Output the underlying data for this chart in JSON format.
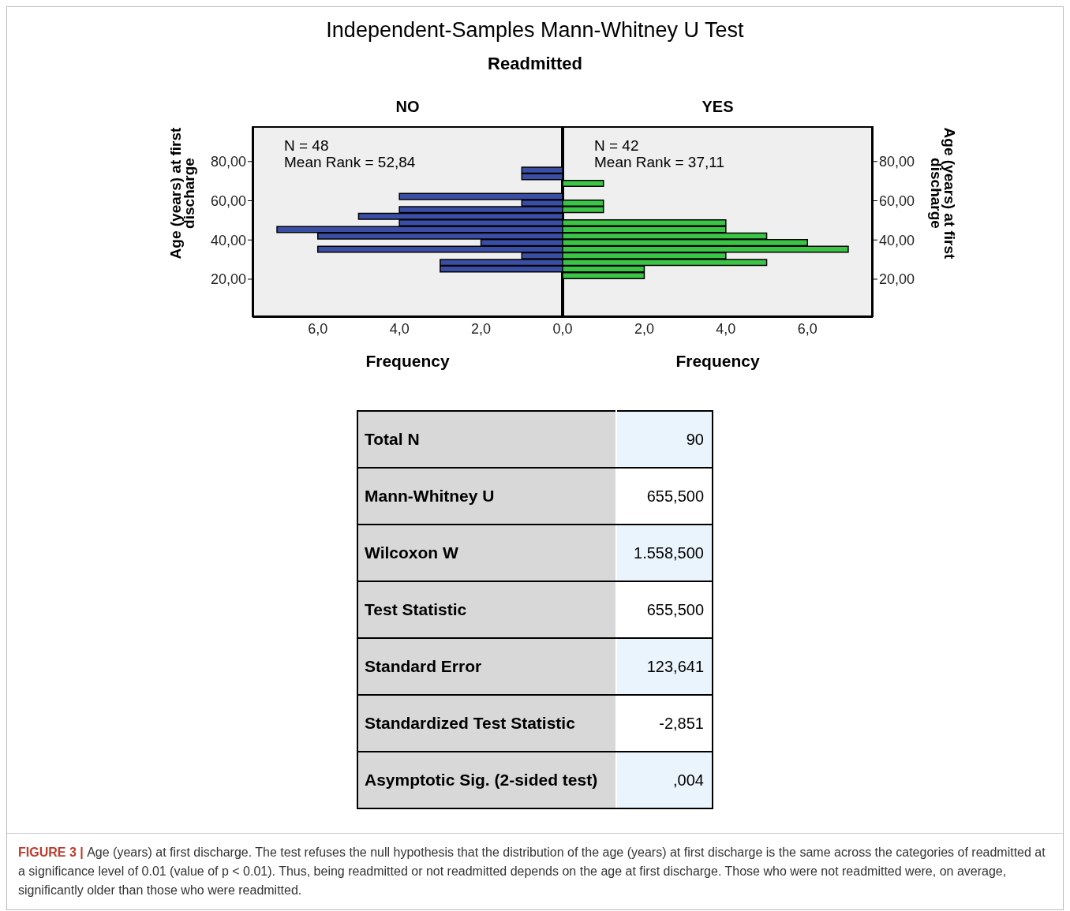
{
  "chart_data": [
    {
      "type": "other",
      "title": "Independent-Samples Mann-Whitney U Test",
      "subtitle": "Readmitted"
    },
    {
      "type": "histogram",
      "orientation": "horizontal",
      "title": "NO",
      "xlabel": "Frequency",
      "ylabel": "Age (years) at first discharge",
      "color": "#3b4ea6",
      "bins": [
        20,
        23.36,
        26.72,
        30.08,
        33.44,
        36.8,
        40.16,
        43.52,
        46.88,
        50.24,
        53.6,
        56.96,
        60.32,
        63.68,
        67.04,
        70.4,
        73.76,
        77.12
      ],
      "values": [
        0,
        3,
        3,
        1,
        6,
        2,
        6,
        7,
        4,
        5,
        4,
        1,
        4,
        0,
        0,
        1,
        1
      ],
      "xlim": [
        7.6,
        0
      ],
      "xticks": [
        {
          "value": 2,
          "label": "2,0"
        },
        {
          "value": 4,
          "label": "4,0"
        },
        {
          "value": 6,
          "label": "6,0"
        }
      ],
      "ylim": [
        0.7,
        98
      ],
      "yticks": [
        {
          "value": 20,
          "label": "20,00"
        },
        {
          "value": 40,
          "label": "40,00"
        },
        {
          "value": 60,
          "label": "60,00"
        },
        {
          "value": 80,
          "label": "80,00"
        }
      ],
      "annotations": [
        "N = 48",
        "Mean Rank = 52,84"
      ]
    },
    {
      "type": "histogram",
      "orientation": "horizontal",
      "title": "YES",
      "xlabel": "Frequency",
      "ylabel": "Age (years) at first discharge",
      "color": "#3cc447",
      "bins": [
        20,
        23.36,
        26.72,
        30.08,
        33.44,
        36.8,
        40.16,
        43.52,
        46.88,
        50.24,
        53.6,
        56.96,
        60.32,
        63.68,
        67.04,
        70.4,
        73.76,
        77.12
      ],
      "values": [
        2,
        2,
        5,
        4,
        7,
        6,
        5,
        4,
        4,
        0,
        1,
        1,
        0,
        0,
        1,
        0,
        0
      ],
      "xlim": [
        0,
        7.6
      ],
      "xticks": [
        {
          "value": 0,
          "label": "0,0"
        },
        {
          "value": 2,
          "label": "2,0"
        },
        {
          "value": 4,
          "label": "4,0"
        },
        {
          "value": 6,
          "label": "6,0"
        }
      ],
      "ylim": [
        0.7,
        98
      ],
      "yticks": [
        {
          "value": 20,
          "label": "20,00"
        },
        {
          "value": 40,
          "label": "40,00"
        },
        {
          "value": 60,
          "label": "60,00"
        },
        {
          "value": 80,
          "label": "80,00"
        }
      ],
      "annotations": [
        "N = 42",
        "Mean Rank = 37,11"
      ]
    },
    {
      "type": "other",
      "annotations": [
        "Total N",
        "90",
        "Mann-Whitney U",
        "655,500",
        "Wilcoxon W",
        "1.558,500",
        "Test Statistic",
        "655,500",
        "Standard Error",
        "123,641",
        "Standardized Test Statistic",
        "-2,851",
        "Asymptotic Sig. (2-sided test)",
        ",004"
      ]
    },
    {
      "type": "other",
      "annotations": [
        "FIGURE 3 |",
        "Age (years) at first discharge. The test refuses the null hypothesis that the distribution of the age (years) at first discharge is the same across the categories of readmitted at a significance level of 0.01 (value of p < 0.01). Thus, being readmitted or not readmitted depends on the age at first discharge. Those who were not readmitted were, on average, significantly older than those who were readmitted."
      ]
    }
  ]
}
